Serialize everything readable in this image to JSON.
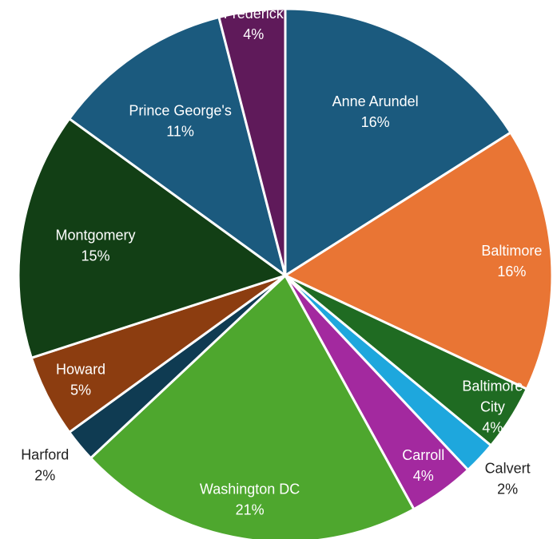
{
  "chart_data": {
    "type": "pie",
    "title": "",
    "legend": "none",
    "start_angle_deg": 0,
    "direction": "clockwise",
    "slices": [
      {
        "name": "Anne Arundel",
        "value": 16,
        "label_lines": [
          "Anne Arundel"
        ],
        "percent_label": "16%",
        "color": "#1b5a7e",
        "label_color": "#ffffff",
        "label_placement": "inside"
      },
      {
        "name": "Baltimore",
        "value": 16,
        "label_lines": [
          "Baltimore"
        ],
        "percent_label": "16%",
        "color": "#e97534",
        "label_color": "#ffffff",
        "label_placement": "inside"
      },
      {
        "name": "Baltimore City",
        "value": 4,
        "label_lines": [
          "Baltimore",
          "City"
        ],
        "percent_label": "4%",
        "color": "#1f6b22",
        "label_color": "#ffffff",
        "label_placement": "inside"
      },
      {
        "name": "Calvert",
        "value": 2,
        "label_lines": [
          "Calvert"
        ],
        "percent_label": "2%",
        "color": "#1ea7dd",
        "label_color": "#222222",
        "label_placement": "outside"
      },
      {
        "name": "Carroll",
        "value": 4,
        "label_lines": [
          "Carroll"
        ],
        "percent_label": "4%",
        "color": "#a3299f",
        "label_color": "#ffffff",
        "label_placement": "inside"
      },
      {
        "name": "Washington DC",
        "value": 21,
        "label_lines": [
          "Washington DC"
        ],
        "percent_label": "21%",
        "color": "#4ea72e",
        "label_color": "#ffffff",
        "label_placement": "inside"
      },
      {
        "name": "Harford",
        "value": 2,
        "label_lines": [
          "Harford"
        ],
        "percent_label": "2%",
        "color": "#0f3b52",
        "label_color": "#222222",
        "label_placement": "outside"
      },
      {
        "name": "Howard",
        "value": 5,
        "label_lines": [
          "Howard"
        ],
        "percent_label": "5%",
        "color": "#8c3d10",
        "label_color": "#ffffff",
        "label_placement": "inside"
      },
      {
        "name": "Montgomery",
        "value": 15,
        "label_lines": [
          "Montgomery"
        ],
        "percent_label": "15%",
        "color": "#123f15",
        "label_color": "#ffffff",
        "label_placement": "inside"
      },
      {
        "name": "Prince George's",
        "value": 11,
        "label_lines": [
          "Prince George's"
        ],
        "percent_label": "11%",
        "color": "#1b5a7e",
        "label_color": "#ffffff",
        "label_placement": "inside"
      },
      {
        "name": "Frederick",
        "value": 4,
        "label_lines": [
          "Frederick"
        ],
        "percent_label": "4%",
        "color": "#5f1a5a",
        "label_color": "#ffffff",
        "label_placement": "inside"
      }
    ]
  }
}
